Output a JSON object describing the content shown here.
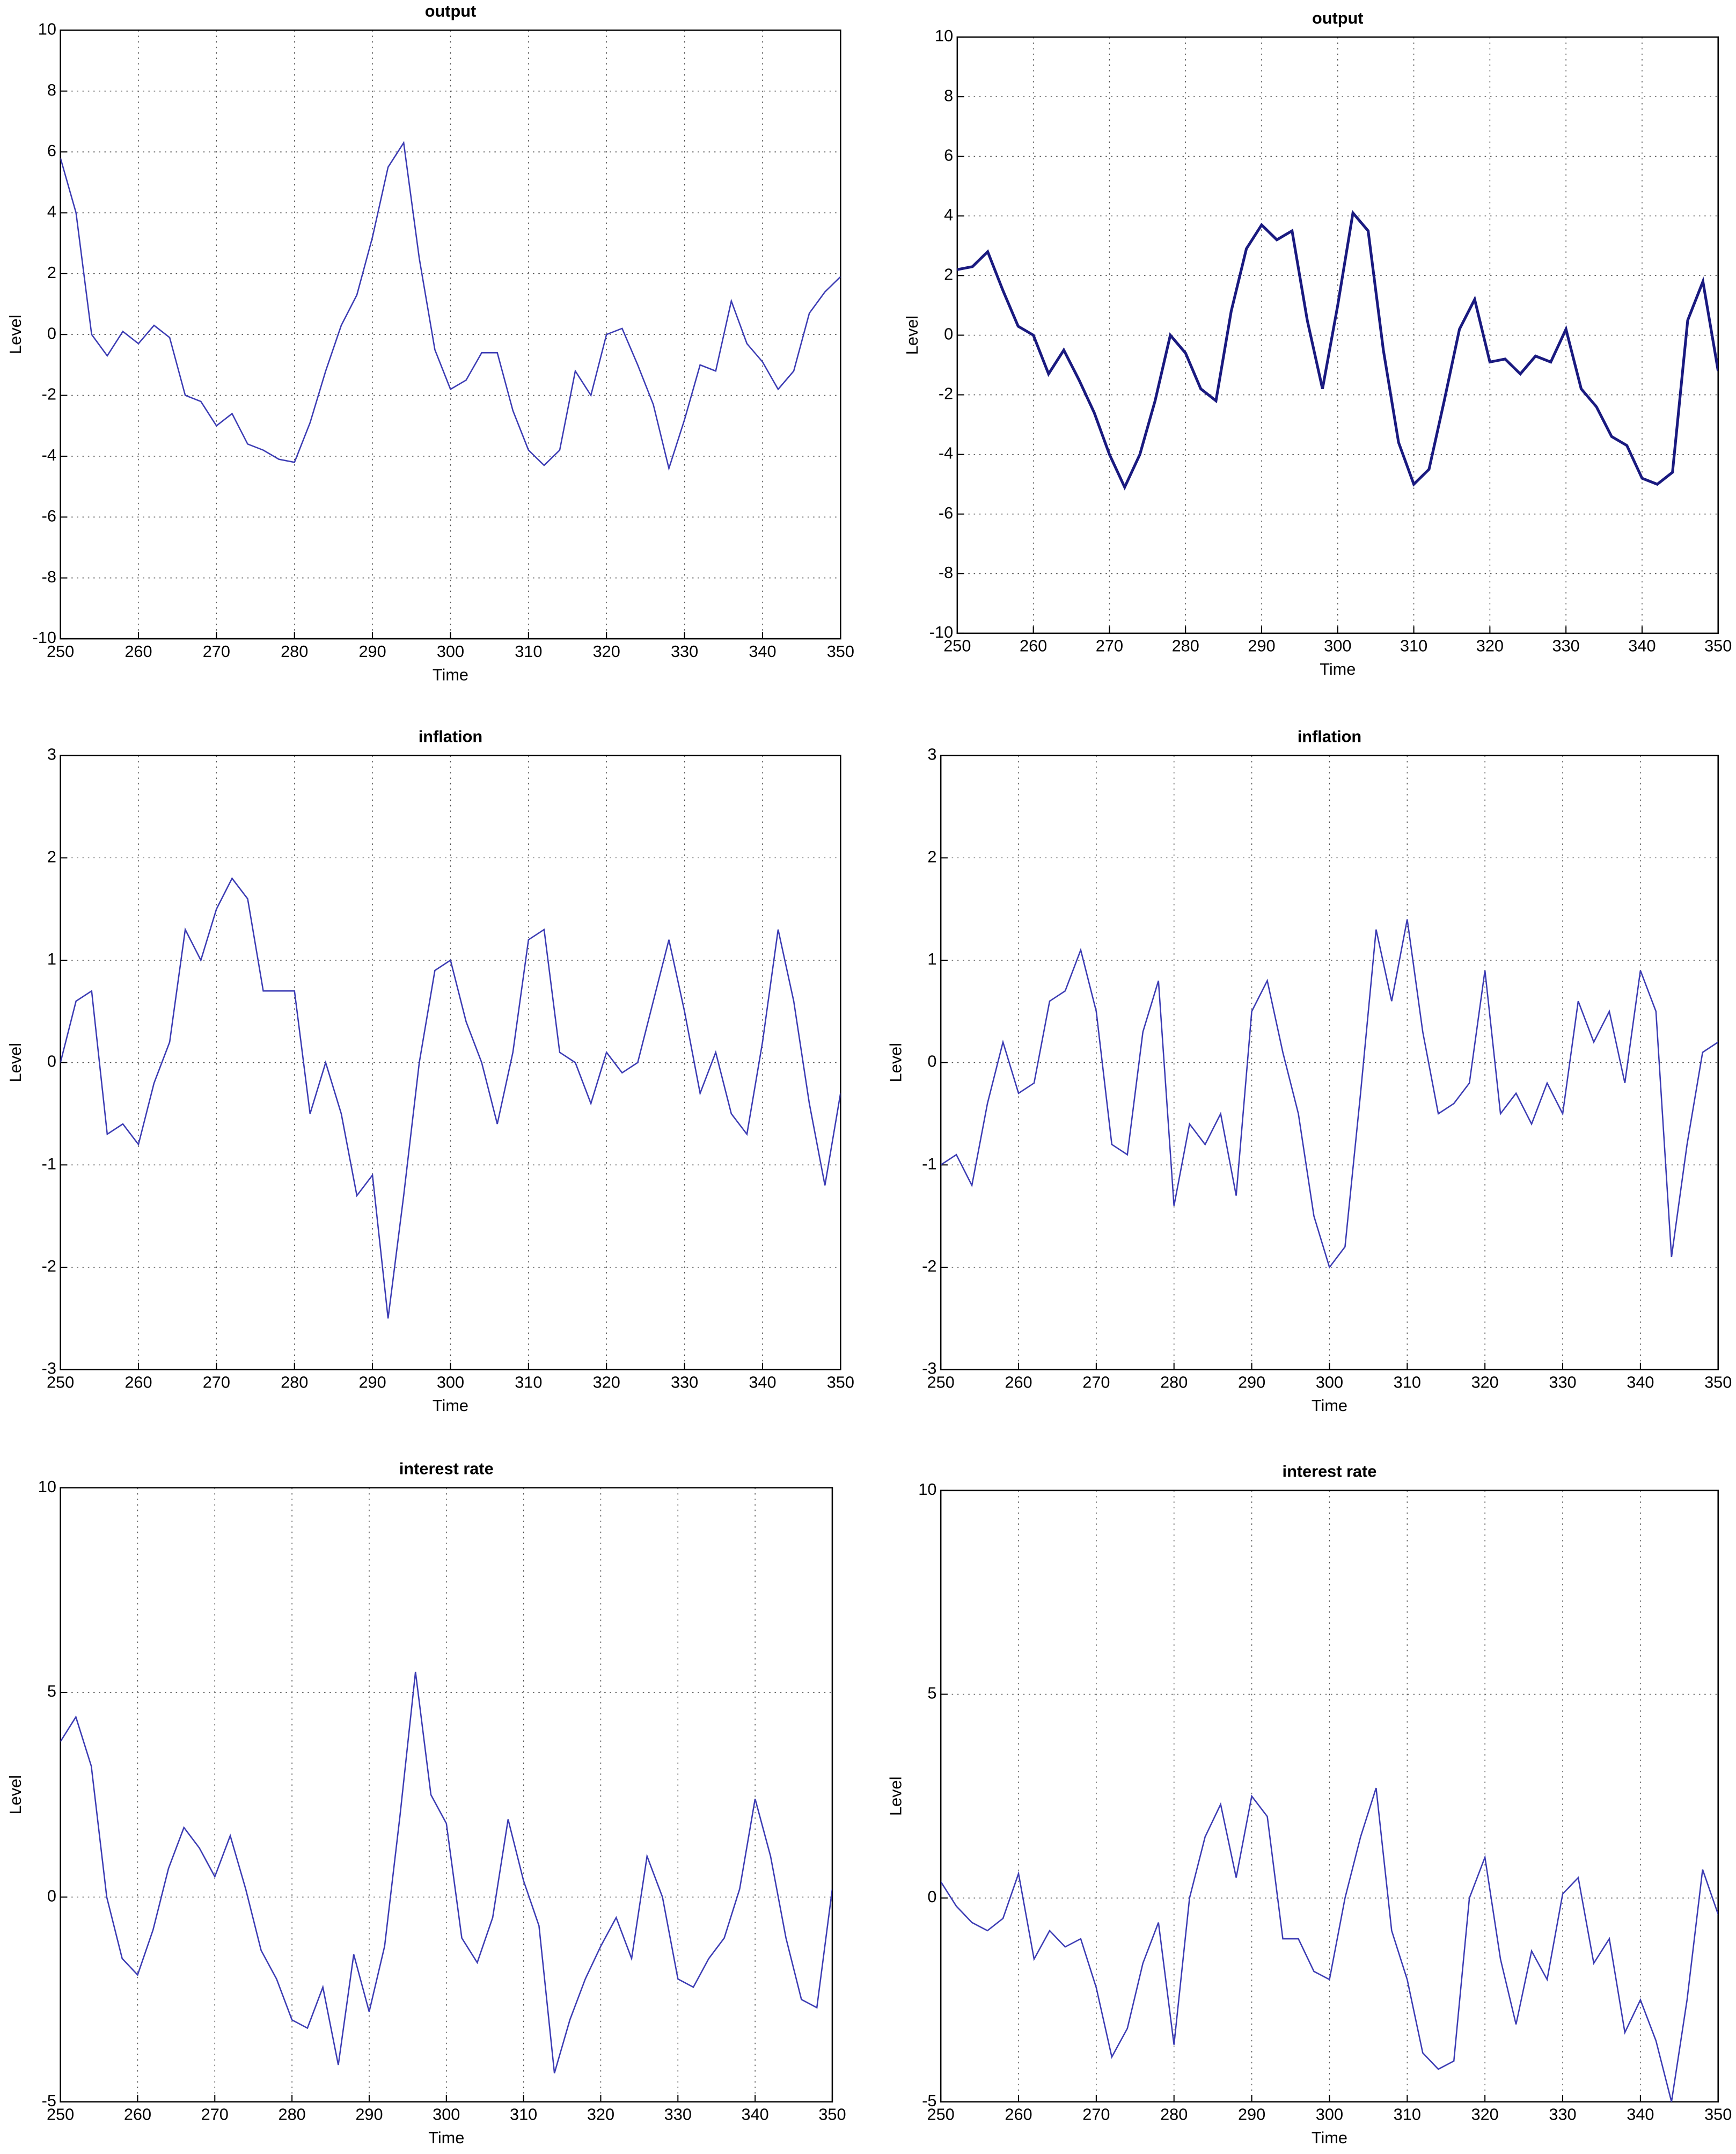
{
  "chart_data": [
    {
      "type": "line",
      "title": "output",
      "xlabel": "Time",
      "ylabel": "Level",
      "color": "#3c3cb4",
      "line_width": 1,
      "grid": true,
      "xlim": [
        250,
        350
      ],
      "xticks": [
        250,
        260,
        270,
        280,
        290,
        300,
        310,
        320,
        330,
        340,
        350
      ],
      "ylim": [
        -10,
        10
      ],
      "yticks": [
        -10,
        -8,
        -6,
        -4,
        -2,
        0,
        2,
        4,
        6,
        8,
        10
      ],
      "x": [
        250,
        252,
        254,
        256,
        258,
        260,
        262,
        264,
        266,
        268,
        270,
        272,
        274,
        276,
        278,
        280,
        282,
        284,
        286,
        288,
        290,
        292,
        294,
        296,
        298,
        300,
        302,
        304,
        306,
        308,
        310,
        312,
        314,
        316,
        318,
        320,
        322,
        324,
        326,
        328,
        330,
        332,
        334,
        336,
        338,
        340,
        342,
        344,
        346,
        348,
        350
      ],
      "values": [
        5.8,
        4,
        0,
        -0.7,
        0.1,
        -0.3,
        0.3,
        -0.1,
        -2,
        -2.2,
        -3,
        -2.6,
        -3.6,
        -3.8,
        -4.1,
        -4.2,
        -2.9,
        -1.2,
        0.3,
        1.3,
        3.2,
        5.5,
        6.3,
        2.5,
        -0.5,
        -1.8,
        -1.5,
        -0.6,
        -0.6,
        -2.5,
        -3.8,
        -4.3,
        -3.8,
        -1.2,
        -2,
        0,
        0.2,
        -1,
        -2.3,
        -4.4,
        -2.8,
        -1,
        -1.2,
        1.1,
        -0.3,
        -0.9,
        -1.8,
        -1.2,
        0.7,
        1.4,
        1.9
      ]
    },
    {
      "type": "line",
      "title": "output",
      "xlabel": "Time",
      "ylabel": "Level",
      "color": "#1a1a80",
      "line_width": 2,
      "grid": true,
      "xlim": [
        250,
        350
      ],
      "xticks": [
        250,
        260,
        270,
        280,
        290,
        300,
        310,
        320,
        330,
        340,
        350
      ],
      "ylim": [
        -10,
        10
      ],
      "yticks": [
        -10,
        -8,
        -6,
        -4,
        -2,
        0,
        2,
        4,
        6,
        8,
        10
      ],
      "x": [
        250,
        252,
        254,
        256,
        258,
        260,
        262,
        264,
        266,
        268,
        270,
        272,
        274,
        276,
        278,
        280,
        282,
        284,
        286,
        288,
        290,
        292,
        294,
        296,
        298,
        300,
        302,
        304,
        306,
        308,
        310,
        312,
        314,
        316,
        318,
        320,
        322,
        324,
        326,
        328,
        330,
        332,
        334,
        336,
        338,
        340,
        342,
        344,
        346,
        348,
        350
      ],
      "values": [
        2.2,
        2.3,
        2.8,
        1.5,
        0.3,
        0,
        -1.3,
        -0.5,
        -1.5,
        -2.6,
        -4,
        -5.1,
        -4,
        -2.2,
        0,
        -0.6,
        -1.8,
        -2.2,
        0.8,
        2.9,
        3.7,
        3.2,
        3.5,
        0.5,
        -1.8,
        1,
        4.1,
        3.5,
        -0.5,
        -3.6,
        -5,
        -4.5,
        -2.2,
        0.2,
        1.2,
        -0.9,
        -0.8,
        -1.3,
        -0.7,
        -0.9,
        0.2,
        -1.8,
        -2.4,
        -3.4,
        -3.7,
        -4.8,
        -5,
        -4.6,
        0.5,
        1.8,
        -1.2
      ]
    },
    {
      "type": "line",
      "title": "inflation",
      "xlabel": "Time",
      "ylabel": "Level",
      "color": "#3c3cb4",
      "line_width": 1,
      "grid": true,
      "xlim": [
        250,
        350
      ],
      "xticks": [
        250,
        260,
        270,
        280,
        290,
        300,
        310,
        320,
        330,
        340,
        350
      ],
      "ylim": [
        -3,
        3
      ],
      "yticks": [
        -3,
        -2,
        -1,
        0,
        1,
        2,
        3
      ],
      "x": [
        250,
        252,
        254,
        256,
        258,
        260,
        262,
        264,
        266,
        268,
        270,
        272,
        274,
        276,
        278,
        280,
        282,
        284,
        286,
        288,
        290,
        292,
        294,
        296,
        298,
        300,
        302,
        304,
        306,
        308,
        310,
        312,
        314,
        316,
        318,
        320,
        322,
        324,
        326,
        328,
        330,
        332,
        334,
        336,
        338,
        340,
        342,
        344,
        346,
        348,
        350
      ],
      "values": [
        0,
        0.6,
        0.7,
        -0.7,
        -0.6,
        -0.8,
        -0.2,
        0.2,
        1.3,
        1,
        1.5,
        1.8,
        1.6,
        0.7,
        0.7,
        0.7,
        -0.5,
        0,
        -0.5,
        -1.3,
        -1.1,
        -2.5,
        -1.3,
        0,
        0.9,
        1,
        0.4,
        0,
        -0.6,
        0.1,
        1.2,
        1.3,
        0.1,
        0,
        -0.4,
        0.1,
        -0.1,
        0,
        0.6,
        1.2,
        0.5,
        -0.3,
        0.1,
        -0.5,
        -0.7,
        0.2,
        1.3,
        0.6,
        -0.4,
        -1.2,
        -0.3
      ]
    },
    {
      "type": "line",
      "title": "inflation",
      "xlabel": "Time",
      "ylabel": "Level",
      "color": "#3c3cb4",
      "line_width": 1,
      "grid": true,
      "xlim": [
        250,
        350
      ],
      "xticks": [
        250,
        260,
        270,
        280,
        290,
        300,
        310,
        320,
        330,
        340,
        350
      ],
      "ylim": [
        -3,
        3
      ],
      "yticks": [
        -3,
        -2,
        -1,
        0,
        1,
        2,
        3
      ],
      "x": [
        250,
        252,
        254,
        256,
        258,
        260,
        262,
        264,
        266,
        268,
        270,
        272,
        274,
        276,
        278,
        280,
        282,
        284,
        286,
        288,
        290,
        292,
        294,
        296,
        298,
        300,
        302,
        304,
        306,
        308,
        310,
        312,
        314,
        316,
        318,
        320,
        322,
        324,
        326,
        328,
        330,
        332,
        334,
        336,
        338,
        340,
        342,
        344,
        346,
        348,
        350
      ],
      "values": [
        -1,
        -0.9,
        -1.2,
        -0.4,
        0.2,
        -0.3,
        -0.2,
        0.6,
        0.7,
        1.1,
        0.5,
        -0.8,
        -0.9,
        0.3,
        0.8,
        -1.4,
        -0.6,
        -0.8,
        -0.5,
        -1.3,
        0.5,
        0.8,
        0.1,
        -0.5,
        -1.5,
        -2,
        -1.8,
        -0.3,
        1.3,
        0.6,
        1.4,
        0.3,
        -0.5,
        -0.4,
        -0.2,
        0.9,
        -0.5,
        -0.3,
        -0.6,
        -0.2,
        -0.5,
        0.6,
        0.2,
        0.5,
        -0.2,
        0.9,
        0.5,
        -1.9,
        -0.8,
        0.1,
        0.2
      ]
    },
    {
      "type": "line",
      "title": "interest rate",
      "xlabel": "Time",
      "ylabel": "Level",
      "color": "#3c3cb4",
      "line_width": 1,
      "grid": true,
      "xlim": [
        250,
        350
      ],
      "xticks": [
        250,
        260,
        270,
        280,
        290,
        300,
        310,
        320,
        330,
        340,
        350
      ],
      "ylim": [
        -5,
        10
      ],
      "yticks": [
        -5,
        0,
        5,
        10
      ],
      "x": [
        250,
        252,
        254,
        256,
        258,
        260,
        262,
        264,
        266,
        268,
        270,
        272,
        274,
        276,
        278,
        280,
        282,
        284,
        286,
        288,
        290,
        292,
        294,
        296,
        298,
        300,
        302,
        304,
        306,
        308,
        310,
        312,
        314,
        316,
        318,
        320,
        322,
        324,
        326,
        328,
        330,
        332,
        334,
        336,
        338,
        340,
        342,
        344,
        346,
        348,
        350
      ],
      "values": [
        3.8,
        4.4,
        3.2,
        0,
        -1.5,
        -1.9,
        -0.8,
        0.7,
        1.7,
        1.2,
        0.5,
        1.5,
        0.2,
        -1.3,
        -2,
        -3,
        -3.2,
        -2.2,
        -4.1,
        -1.4,
        -2.8,
        -1.2,
        2,
        5.5,
        2.5,
        1.8,
        -1,
        -1.6,
        -0.5,
        1.9,
        0.4,
        -0.7,
        -4.3,
        -3,
        -2,
        -1.2,
        -0.5,
        -1.5,
        1,
        0,
        -2,
        -2.2,
        -1.5,
        -1,
        0.2,
        2.4,
        1,
        -1,
        -2.5,
        -2.7,
        0.2
      ]
    },
    {
      "type": "line",
      "title": "interest rate",
      "xlabel": "Time",
      "ylabel": "Level",
      "color": "#3c3cb4",
      "line_width": 1,
      "grid": true,
      "xlim": [
        250,
        350
      ],
      "xticks": [
        250,
        260,
        270,
        280,
        290,
        300,
        310,
        320,
        330,
        340,
        350
      ],
      "ylim": [
        -5,
        10
      ],
      "yticks": [
        -5,
        0,
        5,
        10
      ],
      "x": [
        250,
        252,
        254,
        256,
        258,
        260,
        262,
        264,
        266,
        268,
        270,
        272,
        274,
        276,
        278,
        280,
        282,
        284,
        286,
        288,
        290,
        292,
        294,
        296,
        298,
        300,
        302,
        304,
        306,
        308,
        310,
        312,
        314,
        316,
        318,
        320,
        322,
        324,
        326,
        328,
        330,
        332,
        334,
        336,
        338,
        340,
        342,
        344,
        346,
        348,
        350
      ],
      "values": [
        0.4,
        -0.2,
        -0.6,
        -0.8,
        -0.5,
        0.6,
        -1.5,
        -0.8,
        -1.2,
        -1,
        -2.2,
        -3.9,
        -3.2,
        -1.6,
        -0.6,
        -3.6,
        0,
        1.5,
        2.3,
        0.5,
        2.5,
        2,
        -1,
        -1,
        -1.8,
        -2,
        0,
        1.5,
        2.7,
        -0.8,
        -2,
        -3.8,
        -4.2,
        -4,
        0,
        1,
        -1.5,
        -3.1,
        -1.3,
        -2,
        0.1,
        0.5,
        -1.6,
        -1,
        -3.3,
        -2.5,
        -3.5,
        -5,
        -2.5,
        0.7,
        -0.4
      ]
    }
  ]
}
